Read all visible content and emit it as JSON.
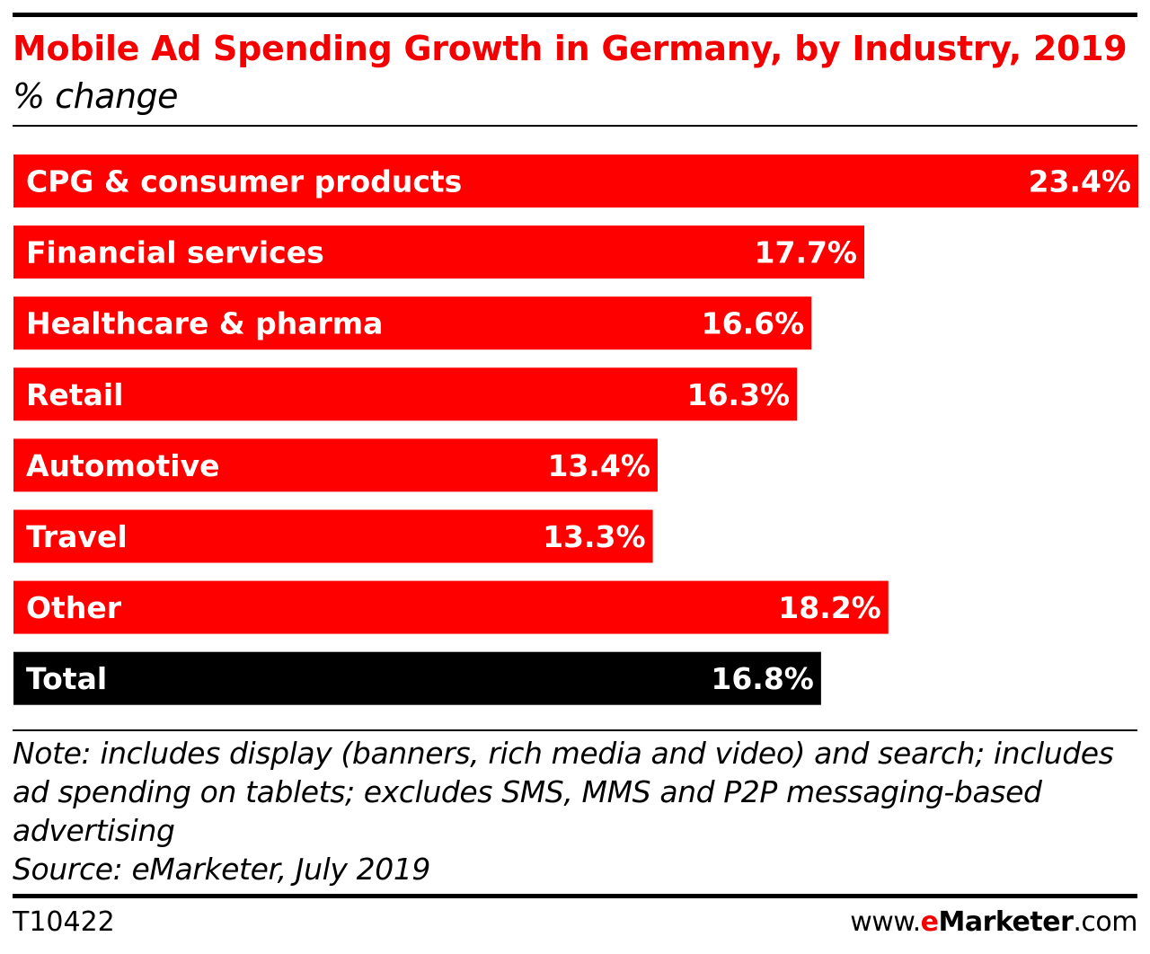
{
  "title": "Mobile Ad Spending Growth in Germany, by Industry, 2019",
  "subtitle": "% change",
  "colors": {
    "bar": "#ff0000",
    "total_bar": "#000000",
    "title": "#f40000",
    "label": "#ffffff"
  },
  "chart_data": {
    "type": "bar",
    "orientation": "horizontal",
    "categories": [
      "CPG & consumer products",
      "Financial services",
      "Healthcare & pharma",
      "Retail",
      "Automotive",
      "Travel",
      "Other",
      "Total"
    ],
    "values": [
      23.4,
      17.7,
      16.6,
      16.3,
      13.4,
      13.3,
      18.2,
      16.8
    ],
    "value_labels": [
      "23.4%",
      "17.7%",
      "16.6%",
      "16.3%",
      "13.4%",
      "13.3%",
      "18.2%",
      "16.8%"
    ],
    "highlight": [
      "",
      "",
      "",
      "",
      "",
      "",
      "",
      "total"
    ],
    "xlim": [
      0,
      23.4
    ],
    "grid": false,
    "legend": "none"
  },
  "notes": {
    "note_lines": [
      "Note: includes display (banners, rich media and video) and search; includes",
      "ad spending on tablets; excludes SMS, MMS and P2P messaging-based",
      "advertising"
    ],
    "source": "Source: eMarketer, July 2019"
  },
  "footer": {
    "chart_id": "T10422",
    "brand_prefix": "www.",
    "brand_e": "e",
    "brand_name": "Marketer",
    "brand_suffix": ".com"
  }
}
